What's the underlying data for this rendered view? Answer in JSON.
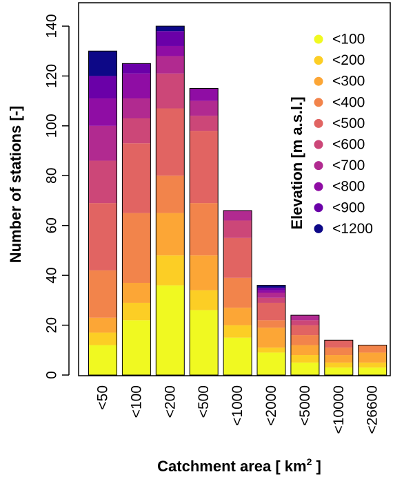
{
  "chart_data": {
    "type": "bar",
    "stacked": true,
    "title": "",
    "xlabel_main": "Catchment area [ km",
    "xlabel_sup": "2",
    "xlabel_end": " ]",
    "ylabel": "Number of stations [-]",
    "ylim": [
      0,
      150
    ],
    "yticks": [
      0,
      20,
      40,
      60,
      80,
      100,
      120,
      140
    ],
    "grid": false,
    "legend": {
      "title": "Elevation [m a.s.l.]",
      "placement": "top-right"
    },
    "categories": [
      "<50",
      "<100",
      "<200",
      "<500",
      "<1000",
      "<2000",
      "<5000",
      "<10000",
      "<26600"
    ],
    "series": [
      {
        "name": "<100",
        "color": "#F0F921",
        "values": [
          12,
          22,
          36,
          26,
          15,
          9,
          5,
          3,
          3
        ]
      },
      {
        "name": "<200",
        "color": "#FCCE25",
        "values": [
          5,
          7,
          12,
          8,
          5,
          2,
          3,
          2,
          2
        ]
      },
      {
        "name": "<300",
        "color": "#FCA636",
        "values": [
          6,
          8,
          17,
          14,
          7,
          8,
          4,
          3,
          4
        ]
      },
      {
        "name": "<400",
        "color": "#F2844B",
        "values": [
          19,
          28,
          15,
          21,
          12,
          3,
          4,
          3,
          3
        ]
      },
      {
        "name": "<500",
        "color": "#E16462",
        "values": [
          27,
          28,
          27,
          29,
          16,
          7,
          4,
          3,
          0
        ]
      },
      {
        "name": "<600",
        "color": "#CC4778",
        "values": [
          17,
          10,
          14,
          6,
          7,
          2,
          2,
          0,
          0
        ]
      },
      {
        "name": "<700",
        "color": "#B12A90",
        "values": [
          14,
          8,
          7,
          6,
          4,
          2,
          2,
          0,
          0
        ]
      },
      {
        "name": "<800",
        "color": "#8F0DA4",
        "values": [
          11,
          10,
          4,
          5,
          0,
          1,
          0,
          0,
          0
        ]
      },
      {
        "name": "<900",
        "color": "#6A00A8",
        "values": [
          9,
          4,
          6,
          0,
          0,
          1,
          0,
          0,
          0
        ]
      },
      {
        "name": "<1200",
        "color": "#0D0887",
        "values": [
          10,
          0,
          2,
          0,
          0,
          1,
          0,
          0,
          0
        ]
      }
    ]
  }
}
